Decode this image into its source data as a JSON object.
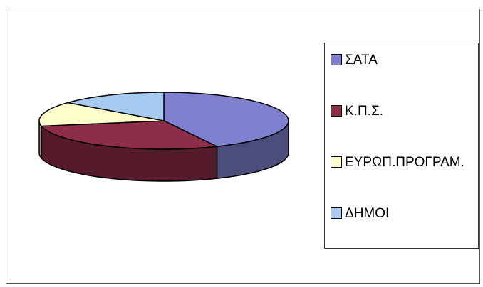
{
  "chart_data": {
    "type": "pie3d",
    "categories": [
      "ΣΑΤΑ",
      "Κ.Π.Σ.",
      "ΕΥΡΩΠ.ΠΡΟΓΡΑΜ.",
      "ΔΗΜΟΙ"
    ],
    "values": [
      43,
      29,
      14,
      14
    ],
    "colors": [
      "#8080d0",
      "#8e2d48",
      "#ffffcc",
      "#a6caf0"
    ],
    "legend": "right"
  }
}
